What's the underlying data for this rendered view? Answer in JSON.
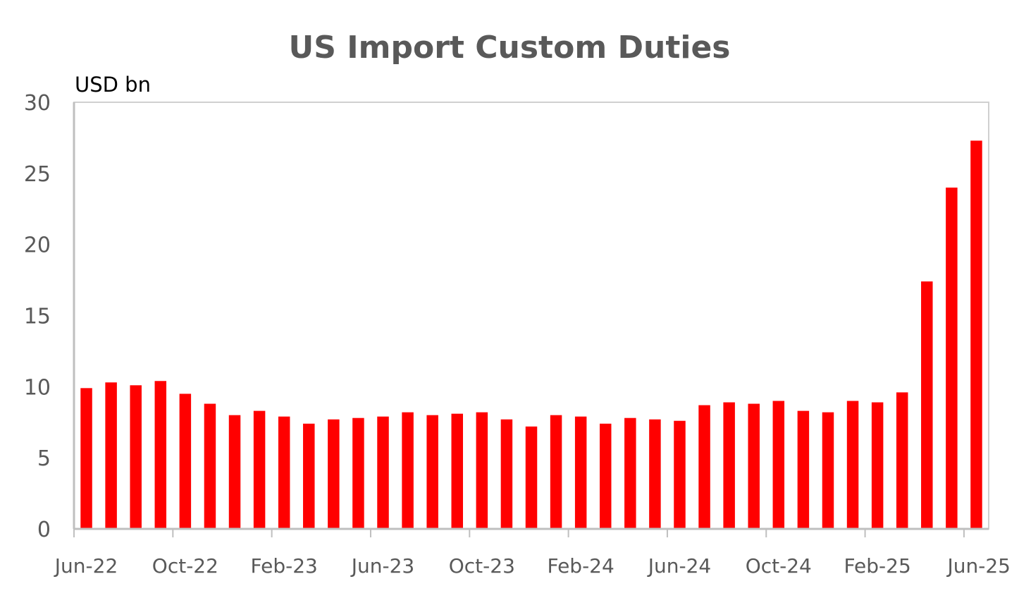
{
  "chart_data": {
    "type": "bar",
    "title": "US Import Custom Duties",
    "ylabel": "USD bn",
    "xlabel": "",
    "ylim": [
      0,
      30
    ],
    "yticks": [
      "0",
      "5",
      "10",
      "15",
      "20",
      "25",
      "30"
    ],
    "xtick_labels": [
      "Jun-22",
      "Oct-22",
      "Feb-23",
      "Jun-23",
      "Oct-23",
      "Feb-24",
      "Jun-24",
      "Oct-24",
      "Feb-25",
      "Jun-25"
    ],
    "xtick_every": 4,
    "grid": false,
    "legend": "none",
    "bar_color": "#ff0000",
    "categories": [
      "Jun-22",
      "Jul-22",
      "Aug-22",
      "Sep-22",
      "Oct-22",
      "Nov-22",
      "Dec-22",
      "Jan-23",
      "Feb-23",
      "Mar-23",
      "Apr-23",
      "May-23",
      "Jun-23",
      "Jul-23",
      "Aug-23",
      "Sep-23",
      "Oct-23",
      "Nov-23",
      "Dec-23",
      "Jan-24",
      "Feb-24",
      "Mar-24",
      "Apr-24",
      "May-24",
      "Jun-24",
      "Jul-24",
      "Aug-24",
      "Sep-24",
      "Oct-24",
      "Nov-24",
      "Dec-24",
      "Jan-25",
      "Feb-25",
      "Mar-25",
      "Apr-25",
      "May-25",
      "Jun-25"
    ],
    "values": [
      9.9,
      10.3,
      10.1,
      10.4,
      9.5,
      8.8,
      8.0,
      8.3,
      7.9,
      7.4,
      7.7,
      7.8,
      7.9,
      8.2,
      8.0,
      8.1,
      8.2,
      7.7,
      7.2,
      8.0,
      7.9,
      7.4,
      7.8,
      7.7,
      7.6,
      8.7,
      8.9,
      8.8,
      9.0,
      8.3,
      8.2,
      9.0,
      8.9,
      9.6,
      17.4,
      24.0,
      27.3
    ]
  }
}
